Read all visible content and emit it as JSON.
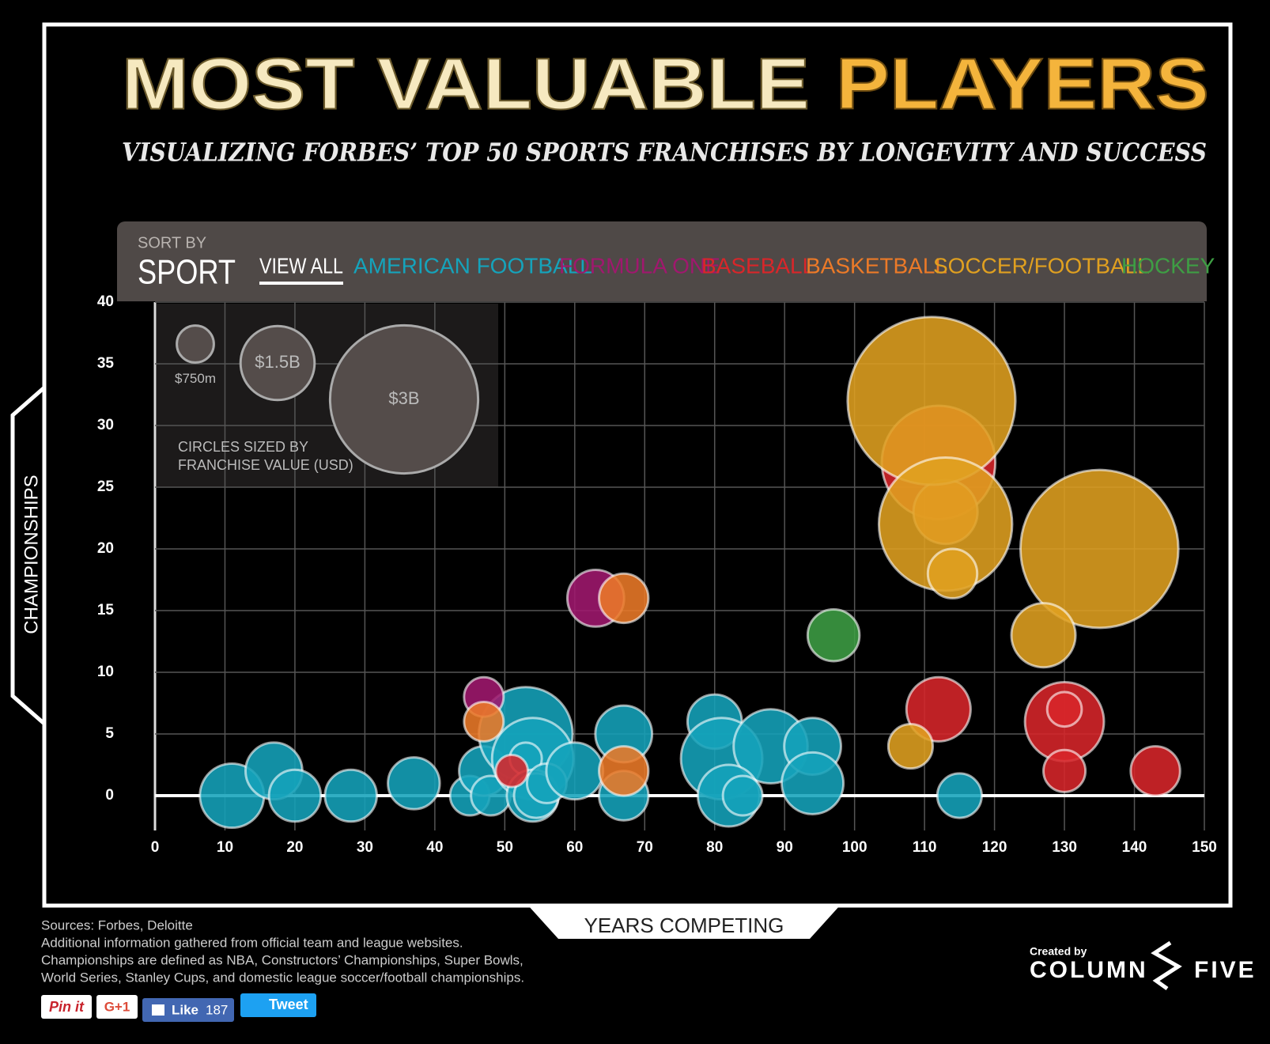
{
  "chart_data": {
    "type": "bubble",
    "title": [
      "MOST VALUABLE",
      "PLAYERS"
    ],
    "subtitle": "VISUALIZING FORBES’ TOP 50 SPORTS FRANCHISES BY LONGEVITY AND SUCCESS",
    "sort_label": "SORT BY",
    "sort_value": "SPORT",
    "view_all": "VIEW ALL",
    "x_label": "YEARS COMPETING",
    "y_label": "CHAMPIONSHIPS",
    "xlim": [
      0,
      150
    ],
    "ylim": [
      0,
      40
    ],
    "xticks": [
      0,
      10,
      20,
      30,
      40,
      50,
      60,
      70,
      80,
      90,
      100,
      110,
      120,
      130,
      140,
      150
    ],
    "yticks": [
      0,
      5,
      10,
      15,
      20,
      25,
      30,
      35,
      40
    ],
    "grid": true,
    "size_legend": [
      {
        "value": 0.75,
        "label": "$750m"
      },
      {
        "value": 1.5,
        "label": "$1.5B"
      },
      {
        "value": 3,
        "label": "$3B"
      }
    ],
    "size_note": [
      "CIRCLES SIZED BY",
      "FRANCHISE VALUE (USD)"
    ],
    "series": [
      {
        "name": "AMERICAN FOOTBALL",
        "color": "#15a3bb",
        "x": [
          11,
          17,
          20,
          28,
          37,
          45,
          47,
          48,
          53,
          54,
          53,
          54,
          54.5,
          56,
          60,
          67,
          67,
          80,
          81,
          88,
          82,
          84,
          94,
          94,
          115
        ],
        "values": [
          0,
          2,
          0,
          0,
          1,
          0,
          2,
          0,
          5,
          3,
          3,
          0,
          0,
          1,
          2,
          5,
          0,
          6,
          3,
          4,
          0,
          0,
          4,
          1,
          0
        ],
        "sizes": [
          1.3,
          1.15,
          1.05,
          1.05,
          1.05,
          0.8,
          1.0,
          0.8,
          1.9,
          1.65,
          0.65,
          1.05,
          0.9,
          0.8,
          1.15,
          1.15,
          1.0,
          1.1,
          1.65,
          1.5,
          1.25,
          0.8,
          1.15,
          1.25,
          0.9
        ]
      },
      {
        "name": "FORMULA ONE",
        "color": "#a0186e",
        "x": [
          63,
          47
        ],
        "values": [
          16,
          8
        ],
        "sizes": [
          1.15,
          0.8
        ]
      },
      {
        "name": "BASEBALL",
        "color": "#d8262a",
        "x": [
          112,
          112,
          130,
          130,
          130,
          143,
          51
        ],
        "values": [
          27,
          7,
          6,
          7,
          2,
          2,
          2
        ],
        "sizes": [
          2.3,
          1.3,
          1.6,
          0.7,
          0.85,
          1.0,
          0.65
        ]
      },
      {
        "name": "BASKETBALL",
        "color": "#ec7a28",
        "x": [
          113,
          67,
          47,
          67
        ],
        "values": [
          23,
          16,
          6,
          2
        ],
        "sizes": [
          1.3,
          1.0,
          0.8,
          1.0
        ]
      },
      {
        "name": "SOCCER/FOOTBALL",
        "color": "#e0a020",
        "x": [
          111,
          135,
          113,
          127,
          114,
          108
        ],
        "values": [
          32,
          20,
          22,
          13,
          18,
          4
        ],
        "sizes": [
          3.4,
          3.2,
          2.7,
          1.3,
          1.0,
          0.9
        ]
      },
      {
        "name": "HOCKEY",
        "color": "#3e9e44",
        "x": [
          97
        ],
        "values": [
          13
        ],
        "sizes": [
          1.05
        ]
      }
    ]
  },
  "sources": [
    "Sources: Forbes, Deloitte",
    "Additional information gathered from official team and league websites.",
    "Championships are defined as NBA, Constructors’ Championships, Super Bowls,",
    "World Series, Stanley Cups, and domestic league soccer/football championships."
  ],
  "social": {
    "pin": "Pin it",
    "gplus": "G+1",
    "like": "Like",
    "like_count": "187",
    "tweet": "Tweet"
  },
  "credit": {
    "created_by": "Created by",
    "left": "COLUMN",
    "right": "FIVE"
  }
}
